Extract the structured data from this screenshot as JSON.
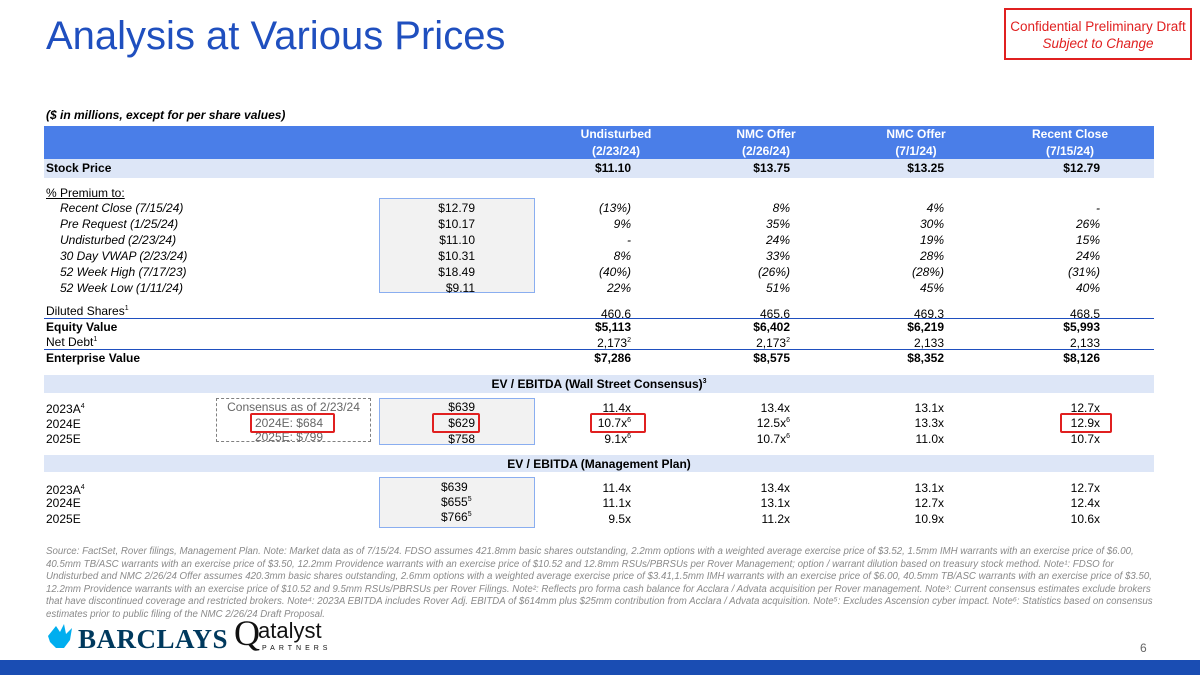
{
  "title": "Analysis at Various Prices",
  "confidential": {
    "line1": "Confidential Preliminary Draft",
    "line2": "Subject to Change"
  },
  "units_note": "($ in millions, except for per share values)",
  "columns": [
    {
      "name": "Undisturbed",
      "date": "(2/23/24)"
    },
    {
      "name": "NMC Offer",
      "date": "(2/26/24)"
    },
    {
      "name": "NMC Offer",
      "date": "(7/1/24)"
    },
    {
      "name": "Recent Close",
      "date": "(7/15/24)"
    }
  ],
  "stock_price": {
    "label": "Stock Price",
    "values": [
      "$11.10",
      "$13.75",
      "$13.25",
      "$12.79"
    ]
  },
  "premium": {
    "heading": "% Premium to:",
    "rows": [
      {
        "label": "Recent Close (7/15/24)",
        "ref": "$12.79",
        "values": [
          "(13%)",
          "8%",
          "4%",
          "-"
        ]
      },
      {
        "label": "Pre Request (1/25/24)",
        "ref": "$10.17",
        "values": [
          "9%",
          "35%",
          "30%",
          "26%"
        ]
      },
      {
        "label": "Undisturbed (2/23/24)",
        "ref": "$11.10",
        "values": [
          "-",
          "24%",
          "19%",
          "15%"
        ]
      },
      {
        "label": "30 Day VWAP (2/23/24)",
        "ref": "$10.31",
        "values": [
          "8%",
          "33%",
          "28%",
          "24%"
        ]
      },
      {
        "label": "52 Week High (7/17/23)",
        "ref": "$18.49",
        "values": [
          "(40%)",
          "(26%)",
          "(28%)",
          "(31%)"
        ]
      },
      {
        "label": "52 Week Low (1/11/24)",
        "ref": "$9.11",
        "values": [
          "22%",
          "51%",
          "45%",
          "40%"
        ]
      }
    ]
  },
  "diluted_shares": {
    "label": "Diluted Shares",
    "note": "1",
    "values": [
      "460.6",
      "465.6",
      "469.3",
      "468.5"
    ]
  },
  "equity_value": {
    "label": "Equity Value",
    "values": [
      "$5,113",
      "$6,402",
      "$6,219",
      "$5,993"
    ]
  },
  "net_debt": {
    "label": "Net Debt",
    "note": "1",
    "values": [
      "2,173",
      "2,173",
      "2,133",
      "2,133"
    ],
    "value_notes": [
      "2",
      "2",
      "",
      ""
    ]
  },
  "enterprise_value": {
    "label": "Enterprise Value",
    "values": [
      "$7,286",
      "$8,575",
      "$8,352",
      "$8,126"
    ]
  },
  "ws_consensus": {
    "heading": "EV / EBITDA (Wall Street Consensus)",
    "heading_note": "3",
    "consensus_box": {
      "title": "Consensus as of 2/23/24",
      "line1": "2024E: $684",
      "line2": "2025E: $799"
    },
    "rows": [
      {
        "label": "2023A",
        "note": "4",
        "ref": "$639",
        "values": [
          "11.4x",
          "13.4x",
          "13.1x",
          "12.7x"
        ],
        "value_notes": [
          "",
          "",
          "",
          ""
        ]
      },
      {
        "label": "2024E",
        "note": "",
        "ref": "$629",
        "values": [
          "10.7x",
          "12.5x",
          "13.3x",
          "12.9x"
        ],
        "value_notes": [
          "6",
          "6",
          "",
          ""
        ]
      },
      {
        "label": "2025E",
        "note": "",
        "ref": "$758",
        "values": [
          "9.1x",
          "10.7x",
          "11.0x",
          "10.7x"
        ],
        "value_notes": [
          "6",
          "6",
          "",
          ""
        ]
      }
    ]
  },
  "mgmt_plan": {
    "heading": "EV / EBITDA (Management Plan)",
    "rows": [
      {
        "label": "2023A",
        "note": "4",
        "ref": "$639",
        "ref_note": "",
        "values": [
          "11.4x",
          "13.4x",
          "13.1x",
          "12.7x"
        ]
      },
      {
        "label": "2024E",
        "note": "",
        "ref": "$655",
        "ref_note": "5",
        "values": [
          "11.1x",
          "13.1x",
          "12.7x",
          "12.4x"
        ]
      },
      {
        "label": "2025E",
        "note": "",
        "ref": "$766",
        "ref_note": "5",
        "values": [
          "9.5x",
          "11.2x",
          "10.9x",
          "10.6x"
        ]
      }
    ]
  },
  "source_note": "Source: FactSet, Rover filings, Management Plan. Note: Market data as of 7/15/24. FDSO assumes 421.8mm basic shares outstanding, 2.2mm options with a weighted average exercise price of $3.52, 1.5mm IMH warrants with an exercise price of $6.00, 40.5mm TB/ASC warrants with an exercise price of $3.50, 12.2mm Providence warrants with an exercise price of $10.52 and 12.8mm RSUs/PBRSUs per Rover Management; option / warrant dilution based on treasury stock method. Note¹: FDSO for Undisturbed and NMC 2/26/24 Offer assumes 420.3mm basic shares outstanding, 2.6mm options with a weighted average exercise price of $3.41,1.5mm IMH warrants with an exercise price of $6.00, 40.5mm TB/ASC warrants with an exercise price of $3.50, 12.2mm Providence warrants with an exercise price of $10.52 and 9.5mm RSUs/PBRSUs per Rover Filings. Note²: Reflects pro forma cash balance for Acclara / Advata acquisition per Rover management. Note³: Current consensus estimates exclude brokers that have discontinued coverage and restricted brokers. Note⁴: 2023A EBITDA includes Rover Adj. EBITDA of $614mm plus $25mm contribution from Acclara / Advata acquisition. Note⁵: Excludes Ascension cyber impact. Note⁶: Statistics based on consensus estimates prior to public filing of the NMC 2/26/24 Draft Proposal.",
  "logos": {
    "barclays": "BARCLAYS",
    "qatalyst_main": "atalyst",
    "qatalyst_letter": "Q",
    "qatalyst_sub": "PARTNERS"
  },
  "page_number": "6",
  "colors": {
    "title_blue": "#1f4fbf",
    "header_blue": "#4a7ee8",
    "band_blue": "#dde6f7",
    "red": "#e02020",
    "footer_bar": "#1a4db3"
  }
}
